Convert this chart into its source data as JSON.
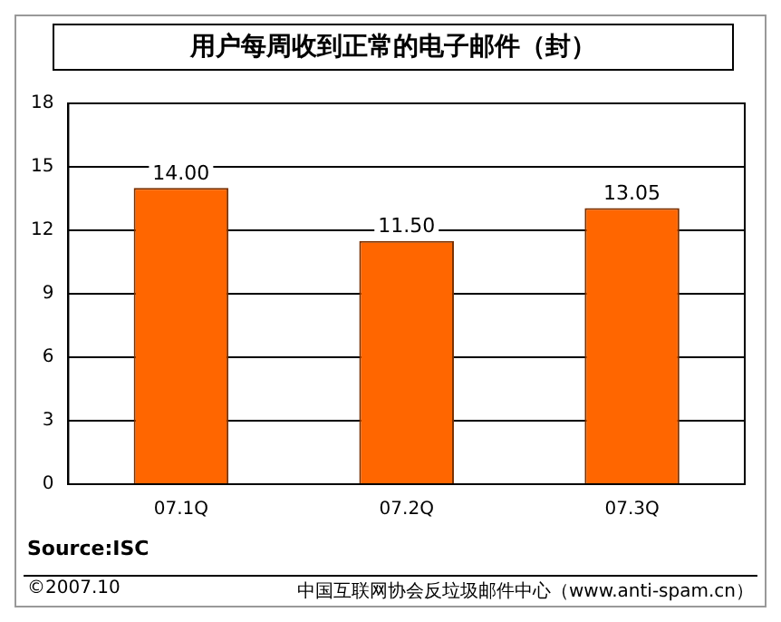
{
  "chart_data": {
    "type": "bar",
    "title": "用户每周收到正常的电子邮件（封）",
    "categories": [
      "07.1Q",
      "07.2Q",
      "07.3Q"
    ],
    "values": [
      14,
      11.5,
      13.05
    ],
    "value_labels": [
      "14.00",
      "11.50",
      "13.05"
    ],
    "color": "#ff6600",
    "ylim": [
      0,
      18
    ],
    "yticks": [
      0,
      3,
      6,
      9,
      12,
      15,
      18
    ],
    "grid": "y",
    "legend": false,
    "annotations": [
      "Source:ISC",
      "©2007.10",
      "中国互联网协会反垃圾邮件中心（www.anti-spam.cn）"
    ]
  }
}
